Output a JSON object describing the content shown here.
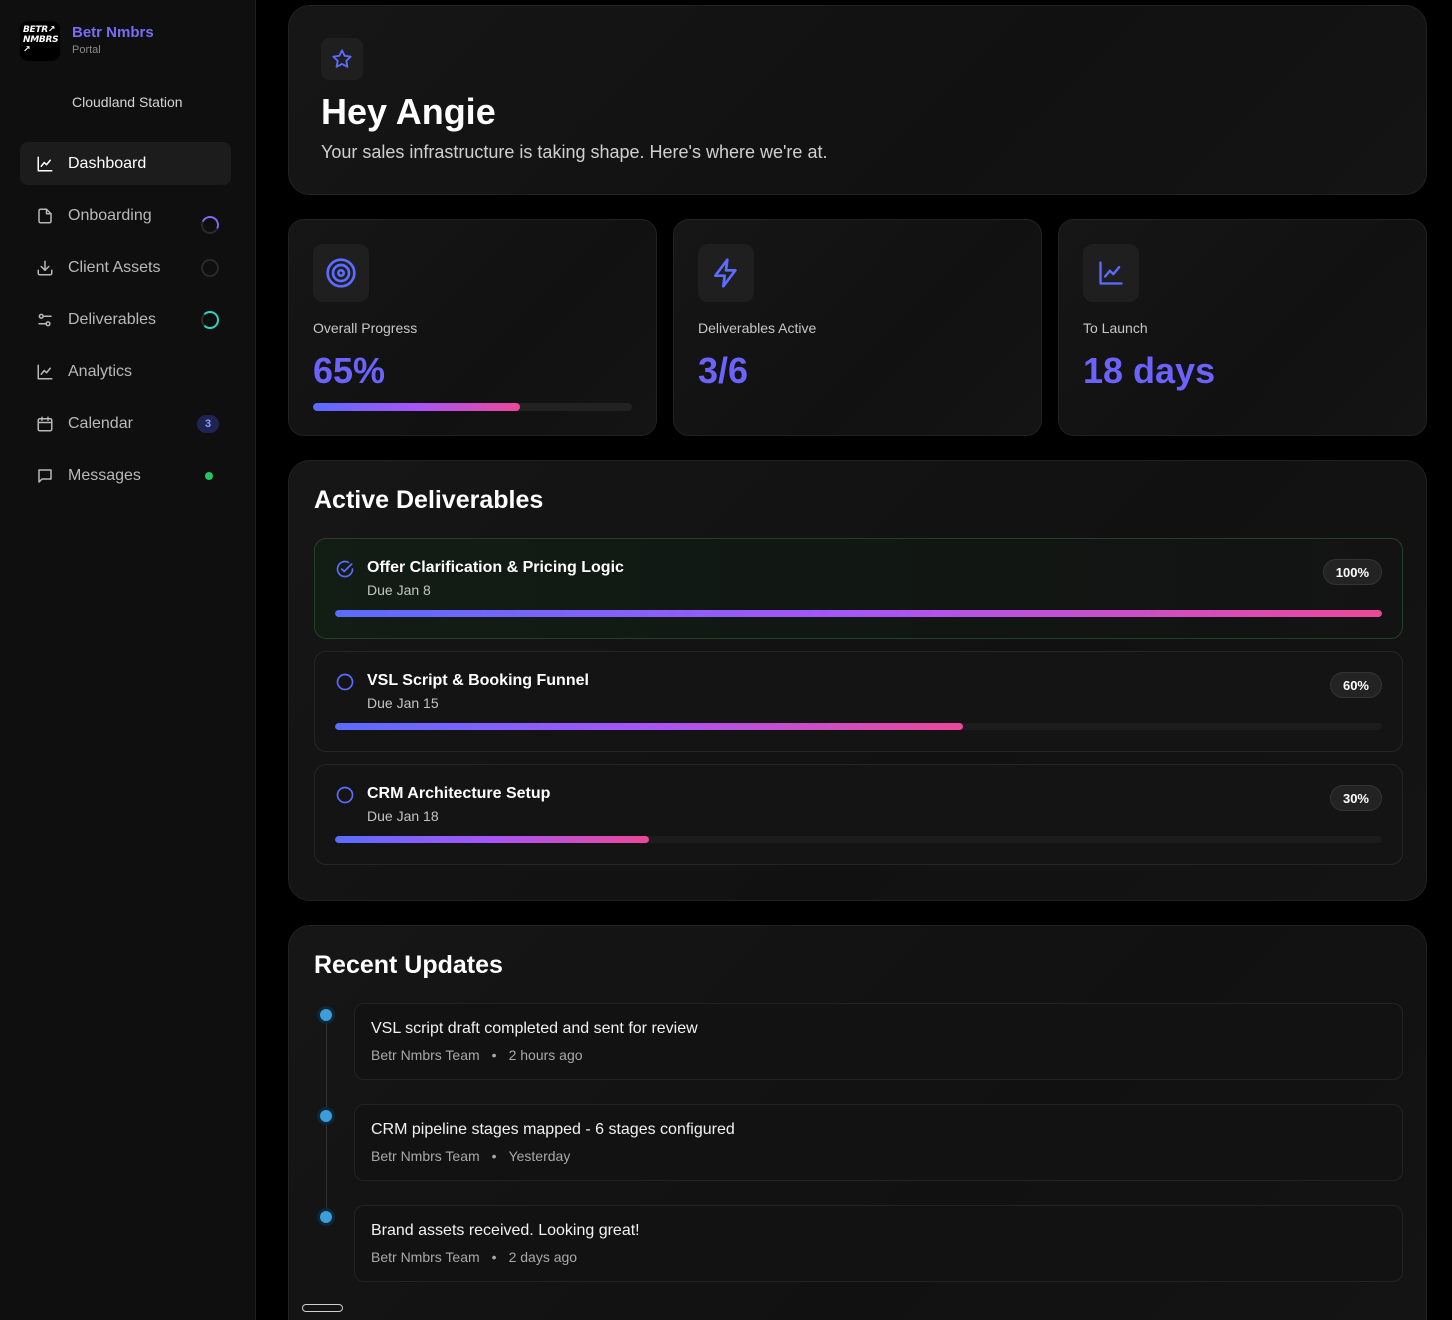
{
  "brand": {
    "logo_text": "BETR↗ NMBRS ↗",
    "name": "Betr Nmbrs",
    "sub": "Portal",
    "workspace": "Cloudland Station"
  },
  "nav": [
    {
      "label": "Dashboard",
      "icon": "chart-line-icon",
      "active": true
    },
    {
      "label": "Onboarding",
      "icon": "document-icon",
      "indicator": "progress-ring"
    },
    {
      "label": "Client Assets",
      "icon": "download-icon",
      "indicator": "empty-ring"
    },
    {
      "label": "Deliverables",
      "icon": "sliders-icon",
      "indicator": "progress-ring"
    },
    {
      "label": "Analytics",
      "icon": "chart-line-icon"
    },
    {
      "label": "Calendar",
      "icon": "calendar-icon",
      "badge": "3"
    },
    {
      "label": "Messages",
      "icon": "message-icon",
      "indicator": "online-dot"
    }
  ],
  "hero": {
    "title": "Hey Angie",
    "subtitle": "Your sales infrastructure is taking shape. Here's where we're at."
  },
  "stats": [
    {
      "label": "Overall Progress",
      "value": "65%",
      "icon": "target-icon",
      "progress": 0.65
    },
    {
      "label": "Deliverables Active",
      "value": "3/6",
      "icon": "lightning-icon"
    },
    {
      "label": "To Launch",
      "value": "18 days",
      "icon": "chart-icon"
    }
  ],
  "deliverables": {
    "title": "Active Deliverables",
    "items": [
      {
        "name": "Offer Clarification & Pricing Logic",
        "due": "Due Jan 8",
        "percent_label": "100%",
        "progress": 1.0,
        "complete": true
      },
      {
        "name": "VSL Script & Booking Funnel",
        "due": "Due Jan 15",
        "percent_label": "60%",
        "progress": 0.6,
        "complete": false
      },
      {
        "name": "CRM Architecture Setup",
        "due": "Due Jan 18",
        "percent_label": "30%",
        "progress": 0.3,
        "complete": false
      }
    ]
  },
  "updates": {
    "title": "Recent Updates",
    "items": [
      {
        "text": "VSL script draft completed and sent for review",
        "author": "Betr Nmbrs Team",
        "sep": "•",
        "time": "2 hours ago"
      },
      {
        "text": "CRM pipeline stages mapped - 6 stages configured",
        "author": "Betr Nmbrs Team",
        "sep": "•",
        "time": "Yesterday"
      },
      {
        "text": "Brand assets received. Looking great!",
        "author": "Betr Nmbrs Team",
        "sep": "•",
        "time": "2 days ago"
      }
    ]
  },
  "colors": {
    "accent": "#6c63ff",
    "brand": "#7b6cf6",
    "gradient": [
      "#5b6cff",
      "#a855f7",
      "#ec4899"
    ],
    "timeline_dot": "#3b9dd9",
    "online": "#22c55e"
  }
}
